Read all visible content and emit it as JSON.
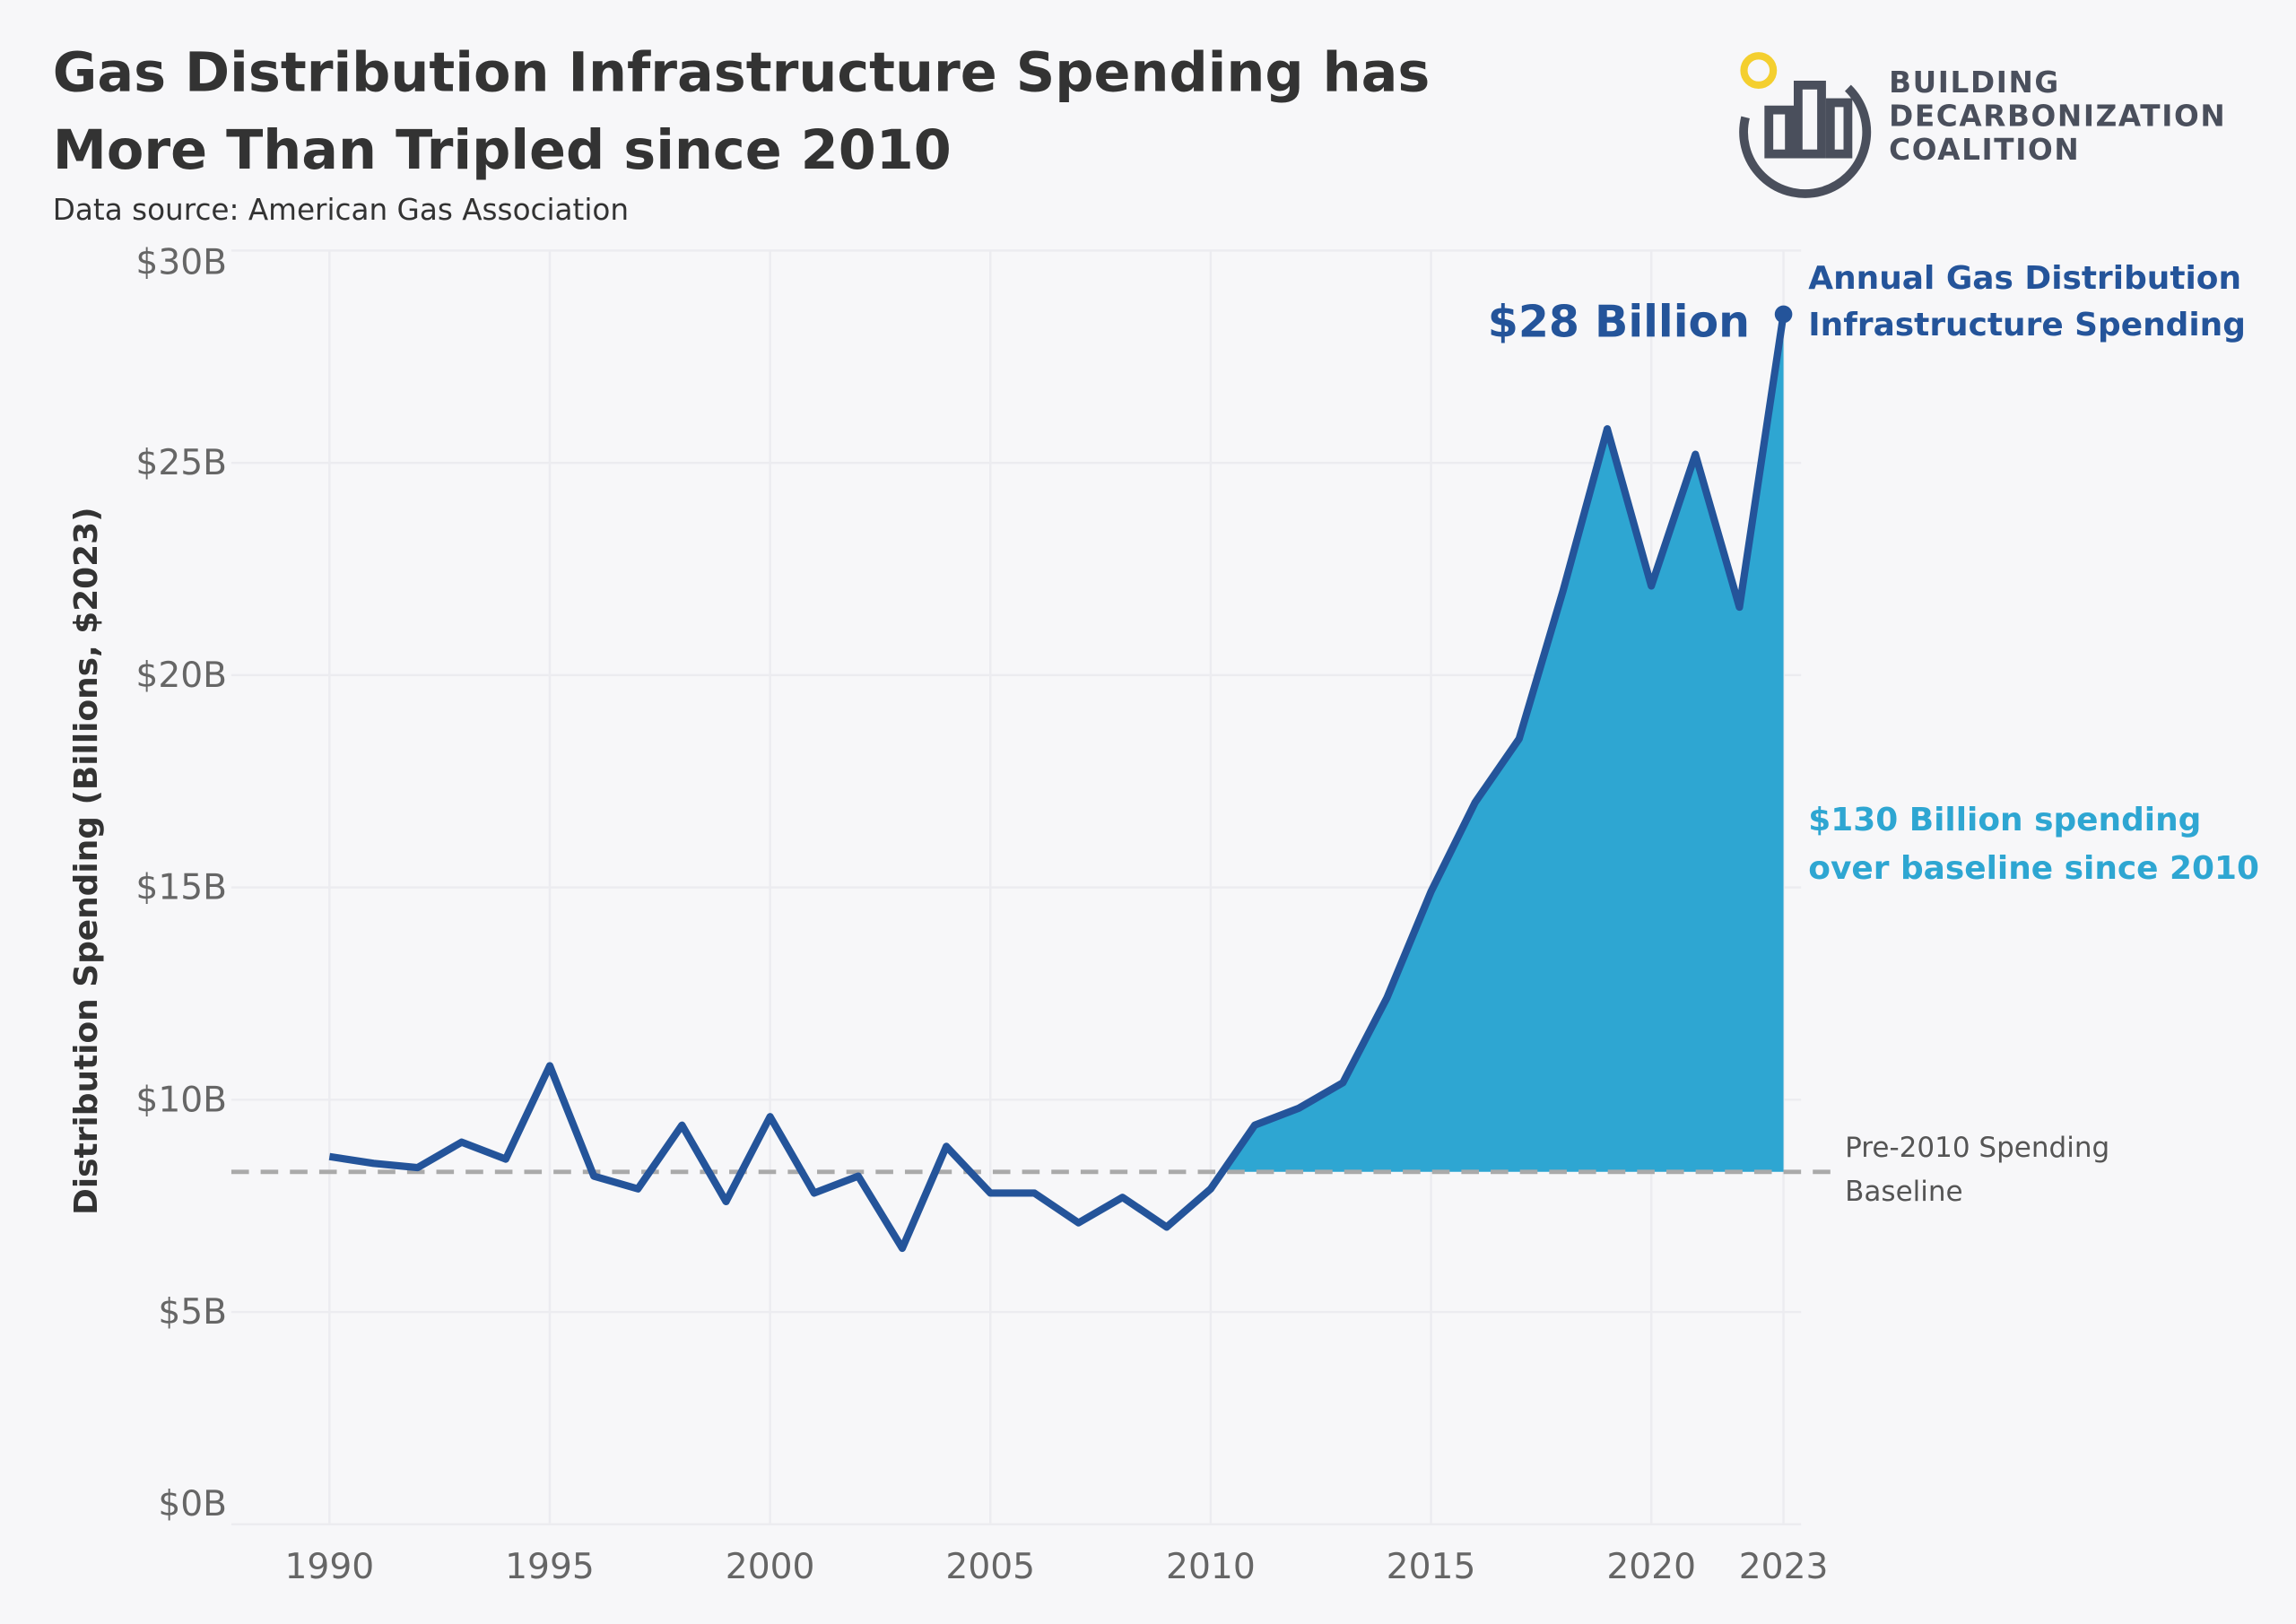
{
  "title_line1": "Gas Distribution Infrastructure Spending has",
  "title_line2": "More Than Tripled since 2010",
  "subtitle": "Data source: American Gas Association",
  "logo": {
    "line1": "BUILDING",
    "line2": "DECARBONIZATION",
    "line3": "COALITION"
  },
  "colors": {
    "line": "#24549a",
    "fill": "#2ea6d2",
    "baseline": "#aaaaaa",
    "text": "#333333",
    "axis": "#666666"
  },
  "chart_data": {
    "type": "line",
    "title": "Gas Distribution Infrastructure Spending has More Than Tripled since 2010",
    "ylabel": "Distribution  Spending (Billions, $2023)",
    "xlabel": "",
    "ylim": [
      0,
      30
    ],
    "xlim": [
      1988,
      2024
    ],
    "yticks": [
      0,
      5,
      10,
      15,
      20,
      25,
      30
    ],
    "ytick_labels": [
      "$0B",
      "$5B",
      "$10B",
      "$15B",
      "$20B",
      "$25B",
      "$30B"
    ],
    "xticks": [
      1990,
      1995,
      2000,
      2005,
      2010,
      2015,
      2020,
      2023
    ],
    "xtick_labels": [
      "1990",
      "1995",
      "2000",
      "2005",
      "2010",
      "2015",
      "2020",
      "2023"
    ],
    "grid": true,
    "x": [
      1990,
      1991,
      1992,
      1993,
      1994,
      1995,
      1996,
      1997,
      1998,
      1999,
      2000,
      2001,
      2002,
      2003,
      2004,
      2005,
      2006,
      2007,
      2008,
      2009,
      2010,
      2011,
      2012,
      2013,
      2014,
      2015,
      2016,
      2017,
      2018,
      2019,
      2020,
      2021,
      2022,
      2023
    ],
    "series": [
      {
        "name": "Annual Gas Distribution Infrastructure Spending",
        "values": [
          8.66,
          8.5,
          8.4,
          9.0,
          8.6,
          10.8,
          8.2,
          7.9,
          9.4,
          7.6,
          9.6,
          7.8,
          8.2,
          6.5,
          8.9,
          7.8,
          7.8,
          7.1,
          7.7,
          7.0,
          7.9,
          9.4,
          9.8,
          10.4,
          12.4,
          14.9,
          17.0,
          18.5,
          22.0,
          25.8,
          22.1,
          25.2,
          21.6,
          28.5
        ]
      }
    ],
    "baseline": {
      "value": 8.3,
      "label_line1": "Pre-2010 Spending",
      "label_line2": "Baseline"
    },
    "annotations": {
      "end_value": "$28 Billion",
      "series_label_line1": "Annual Gas Distribution",
      "series_label_line2": "Infrastructure Spending",
      "area_label_line1": "$130 Billion spending",
      "area_label_line2": "over baseline since 2010"
    }
  }
}
